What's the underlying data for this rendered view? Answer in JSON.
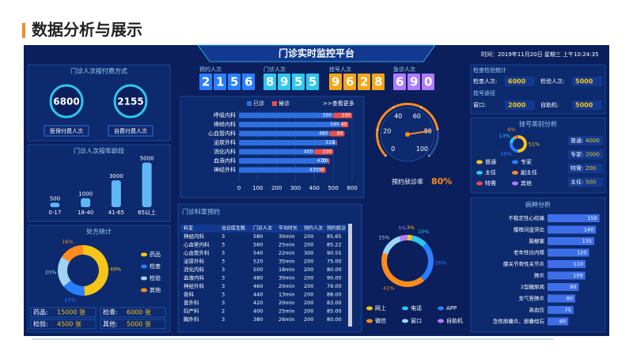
{
  "slide_title": "数据分析与展示",
  "dashboard": {
    "title": "门诊实时监控平台",
    "time": "时间：2019年11月20日 星期三 上午10:24:35"
  },
  "payment": {
    "title": "门诊人次按付费方式",
    "items": [
      {
        "value": 6800,
        "label": "医保付费人次"
      },
      {
        "value": 2155,
        "label": "自费付费人次"
      }
    ]
  },
  "counters": [
    {
      "label": "预约人次",
      "value": 2156
    },
    {
      "label": "门诊人次",
      "value": 8955
    },
    {
      "label": "挂号人次",
      "value": 9628
    },
    {
      "label": "急诊人次",
      "value": 690
    }
  ],
  "exam": {
    "title": "检查检验统计",
    "items": [
      {
        "label": "检查人次:",
        "value": 6000
      },
      {
        "label": "检验人次:",
        "value": 5000
      }
    ]
  },
  "channel": {
    "title": "挂号途径",
    "items": [
      {
        "label": "窗口:",
        "value": 2000
      },
      {
        "label": "自助机:",
        "value": 5000
      }
    ]
  },
  "prescription_table": [
    {
      "label": "药品:",
      "value": "15000 张"
    },
    {
      "label": "检查:",
      "value": "6000 张"
    },
    {
      "label": "检验:",
      "value": "4500 张"
    },
    {
      "label": "其他:",
      "value": "5000 张"
    }
  ],
  "registration_table": [
    {
      "label": "普通:",
      "value": 4000
    },
    {
      "label": "专家:",
      "value": 2000
    },
    {
      "label": "特需:",
      "value": 200
    },
    {
      "label": "主任:",
      "value": 500
    }
  ],
  "appointment_table": {
    "title": "门诊科室预约",
    "columns": [
      "科室",
      "出诊医生数",
      "门诊人次",
      "平均时长",
      "预约人次",
      "预约就诊"
    ],
    "rows": [
      [
        "神经内科",
        "3",
        "580",
        "30min",
        "200",
        "85.65"
      ],
      [
        "心血管内科",
        "3",
        "560",
        "25min",
        "200",
        "85.22"
      ],
      [
        "心血管外科",
        "3",
        "540",
        "22min",
        "300",
        "90.55"
      ],
      [
        "泌尿外科",
        "3",
        "520",
        "35min",
        "200",
        "75.00"
      ],
      [
        "消化内科",
        "3",
        "500",
        "18min",
        "200",
        "80.00"
      ],
      [
        "血液内科",
        "3",
        "480",
        "30min",
        "200",
        "90.00"
      ],
      [
        "神经外科",
        "3",
        "460",
        "20min",
        "200",
        "79.00"
      ],
      [
        "骨科",
        "3",
        "440",
        "13min",
        "200",
        "88.00"
      ],
      [
        "普外科",
        "3",
        "420",
        "20min",
        "200",
        "83.00"
      ],
      [
        "妇产科",
        "2",
        "400",
        "25min",
        "200",
        "85.00"
      ],
      [
        "胸外科",
        "3",
        "380",
        "26min",
        "200",
        "80.00"
      ]
    ]
  },
  "chart_data": [
    {
      "type": "bar",
      "title": "门诊人次按年龄段",
      "categories": [
        "0-17",
        "18-40",
        "41-65",
        "65以上"
      ],
      "values": [
        500,
        1000,
        3000,
        5000
      ],
      "color": "#5fb8f5",
      "ylim": [
        0,
        5500
      ]
    },
    {
      "type": "pie",
      "title": "处方统计",
      "categories": [
        "药品",
        "检查",
        "检验",
        "其他"
      ],
      "values": [
        49,
        15,
        20,
        16
      ],
      "value_labels": [
        "49%",
        "15%",
        "20%",
        "16%"
      ],
      "colors": [
        "#f5c518",
        "#2a7fff",
        "#9fd4f5",
        "#ff8c1a"
      ]
    },
    {
      "type": "stacked_hbar",
      "link": ">>查看更多",
      "categories": [
        "呼吸内科",
        "神经内科",
        "心血管内科",
        "泌尿外科",
        "消化内科",
        "血液内科",
        "神经外科"
      ],
      "series": [
        {
          "name": "已诊",
          "color": "#2f6fe0",
          "values": [
            500,
            540,
            480,
            515,
            400,
            470,
            430
          ]
        },
        {
          "name": "候诊",
          "color": "#e8504a",
          "values": [
            100,
            40,
            80,
            5,
            100,
            10,
            30
          ]
        }
      ],
      "xlim": [
        0,
        600
      ],
      "xticks": [
        0,
        100,
        200,
        300,
        400,
        500,
        600
      ]
    },
    {
      "type": "gauge",
      "title": "预约就诊率",
      "value": 80,
      "value_label": "80%",
      "ylim": [
        0,
        100
      ],
      "yticks": [
        0,
        20,
        40,
        60,
        80,
        100
      ],
      "color": "#ff8c1a"
    },
    {
      "type": "pie",
      "categories": [
        "网上",
        "电话",
        "APP",
        "微信",
        "窗口",
        "自助机"
      ],
      "values": [
        3,
        10,
        26,
        41,
        15,
        5
      ],
      "value_labels": [
        "3%",
        "10%",
        "26%",
        "41%",
        "15%",
        "5%"
      ],
      "colors": [
        "#f5c518",
        "#2fc6f0",
        "#2a7fff",
        "#ff8c1a",
        "#9fd4f5",
        "#b07cff"
      ]
    },
    {
      "type": "pie",
      "title": "挂号类别分析",
      "categories": [
        "普通",
        "专家",
        "主任",
        "副主任",
        "特需",
        "其他"
      ],
      "values": [
        51,
        26,
        13,
        6,
        2,
        2
      ],
      "value_labels": [
        "51%",
        "26%",
        "13%",
        "6%",
        null,
        null
      ],
      "colors": [
        "#f5c518",
        "#2a7fff",
        "#2fc6f0",
        "#ff8c1a",
        "#e8504a",
        "#b07cff"
      ]
    },
    {
      "type": "hbar",
      "title": "病种分析",
      "categories": [
        "不稳定性心绞痛",
        "腰椎间盘突出",
        "脑梗塞",
        "老年性白内障",
        "膝关节骨性关节炎",
        "肺炎",
        "2型糖尿病",
        "支气管肺炎",
        "高血压",
        "急性胆囊炎、胆囊结石"
      ],
      "values": [
        150,
        140,
        135,
        120,
        110,
        109,
        90,
        80,
        75,
        60
      ],
      "color": "#3d6fe8",
      "xlim": [
        0,
        160
      ]
    }
  ]
}
